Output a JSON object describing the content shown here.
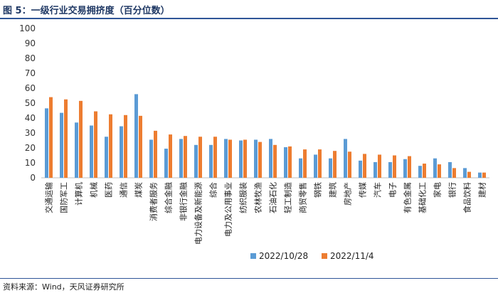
{
  "figure": {
    "title": "图 5：一级行业交易拥挤度（百分位数）",
    "source": "资料来源：Wind，天风证券研究所"
  },
  "chart_data": {
    "type": "bar",
    "title": "",
    "xlabel": "",
    "ylabel": "",
    "ylim": [
      0,
      100
    ],
    "yticks": [
      0,
      10,
      20,
      30,
      40,
      50,
      60,
      70,
      80,
      90,
      100
    ],
    "legend_position": "bottom",
    "colors": {
      "2022/10/28": "#5b9bd5",
      "2022/11/4": "#ed7d31"
    },
    "categories": [
      "交通运输",
      "国防军工",
      "计算机",
      "机械",
      "医药",
      "通信",
      "煤炭",
      "消费者服务",
      "综合金融",
      "非银行金融",
      "电力设备及新能源",
      "综合",
      "电力及公用事业",
      "纺织服装",
      "农林牧渔",
      "石油石化",
      "轻工制造",
      "商贸零售",
      "钢铁",
      "建筑",
      "房地产",
      "传媒",
      "汽车",
      "电子",
      "有色金属",
      "基础化工",
      "家电",
      "银行",
      "食品饮料",
      "建材"
    ],
    "series": [
      {
        "name": "2022/10/28",
        "values": [
          46.5,
          43.5,
          37,
          35,
          27.5,
          34.5,
          56,
          25.5,
          19.5,
          26,
          22,
          22,
          26,
          25,
          25.5,
          26,
          20.5,
          13,
          15.5,
          13,
          26,
          11.5,
          10.5,
          10.5,
          12.5,
          8,
          13,
          10.5,
          6.5,
          3.5
        ]
      },
      {
        "name": "2022/11/4",
        "values": [
          54,
          52.5,
          51.5,
          44.5,
          42.5,
          42,
          41.5,
          31.5,
          29,
          28,
          27.5,
          27.5,
          25.5,
          25.5,
          24,
          22,
          21,
          19,
          19,
          18,
          17.5,
          16,
          15.5,
          15,
          14.5,
          9.5,
          9,
          6.5,
          4,
          3.5
        ]
      }
    ]
  }
}
